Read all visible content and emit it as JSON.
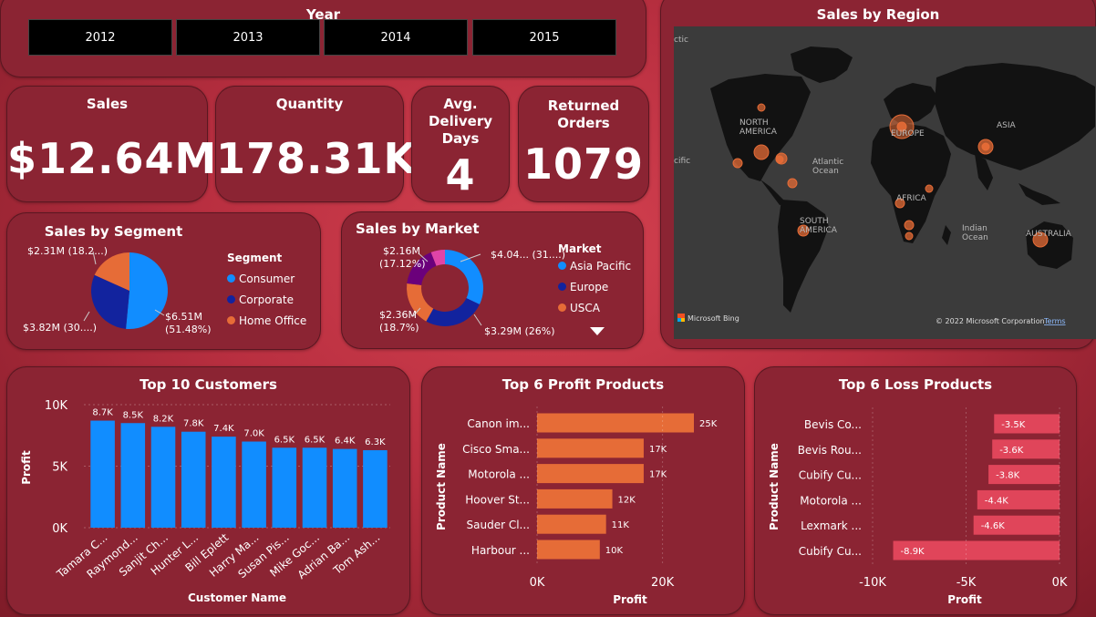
{
  "year_slicer": {
    "title": "Year",
    "years": [
      "2012",
      "2013",
      "2014",
      "2015"
    ]
  },
  "kpis": {
    "sales": {
      "title": "Sales",
      "value": "$12.64M"
    },
    "quantity": {
      "title": "Quantity",
      "value": "178.31K"
    },
    "delivery": {
      "title_lines": [
        "Avg.",
        "Delivery",
        "Days"
      ],
      "value": "4"
    },
    "returned": {
      "title_lines": [
        "Returned",
        "Orders"
      ],
      "value": "1079"
    }
  },
  "segment": {
    "title": "Sales by Segment",
    "legend_title": "Segment",
    "labels": [
      "$6.51M",
      "(51.48%)",
      "$3.82M (30....)",
      "$2.31M (18.2...)"
    ],
    "colors": {
      "consumer": "#118dff",
      "corporate": "#12239e",
      "home_office": "#e66c37"
    },
    "chart_data": {
      "type": "pie",
      "categories": [
        "Consumer",
        "Corporate",
        "Home Office"
      ],
      "values": [
        6.51,
        3.82,
        2.31
      ]
    }
  },
  "market": {
    "title": "Sales by Market",
    "legend_title": "Market",
    "legend_items": [
      "Asia Pacific",
      "Europe",
      "USCA"
    ],
    "labels": [
      "$4.04... (31....)",
      "$3.29M (26%)",
      "$2.36M",
      "(18.7%)",
      "$2.16M",
      "(17.12%)"
    ],
    "colors": [
      "#118dff",
      "#12239e",
      "#e66c37",
      "#6b007b",
      "#e044a7"
    ],
    "chart_data": {
      "type": "pie",
      "values": [
        4.04,
        3.29,
        2.36,
        2.16,
        0.75
      ]
    }
  },
  "region_map": {
    "title": "Sales by Region",
    "continents": [
      "NORTH AMERICA",
      "EUROPE",
      "ASIA",
      "AFRICA",
      "SOUTH AMERICA",
      "AUSTRALIA"
    ],
    "oceans": [
      "Atlantic Ocean",
      "Indian Ocean"
    ],
    "edge_fragments": [
      "ctic",
      "cific"
    ],
    "attribution": "Microsoft Bing",
    "copyright": "© 2022 Microsoft Corporation",
    "terms": "Terms"
  },
  "top_customers": {
    "title": "Top 10 Customers",
    "color": "#118dff",
    "chart_data": {
      "type": "bar",
      "categories": [
        "Tamara C...",
        "Raymond...",
        "Sanjit Ch...",
        "Hunter L...",
        "Bill Eplett",
        "Harry Ma...",
        "Susan Pis...",
        "Mike Goc...",
        "Adrian Ba...",
        "Tom Ash..."
      ],
      "values": [
        8.7,
        8.5,
        8.2,
        7.8,
        7.4,
        7.0,
        6.5,
        6.5,
        6.4,
        6.3
      ],
      "data_labels": [
        "8.7K",
        "8.5K",
        "8.2K",
        "7.8K",
        "7.4K",
        "7.0K",
        "6.5K",
        "6.5K",
        "6.4K",
        "6.3K"
      ],
      "xlabel": "Customer Name",
      "ylabel": "Profit",
      "yticks": [
        "0K",
        "5K",
        "10K"
      ],
      "ylim": [
        0,
        10
      ]
    }
  },
  "profit_products": {
    "title": "Top 6 Profit Products",
    "color": "#e66c37",
    "chart_data": {
      "type": "bar",
      "orientation": "horizontal",
      "categories": [
        "Canon im...",
        "Cisco Sma...",
        "Motorola ...",
        "Hoover St...",
        "Sauder Cl...",
        "Harbour ..."
      ],
      "values": [
        25,
        17,
        17,
        12,
        11,
        10
      ],
      "data_labels": [
        "25K",
        "17K",
        "17K",
        "12K",
        "11K",
        "10K"
      ],
      "xlabel": "Profit",
      "ylabel": "Product Name",
      "xticks": [
        "0K",
        "20K"
      ],
      "xlim": [
        0,
        25
      ]
    }
  },
  "loss_products": {
    "title": "Top 6 Loss Products",
    "color": "#e0455a",
    "chart_data": {
      "type": "bar",
      "orientation": "horizontal",
      "categories": [
        "Bevis Co...",
        "Bevis Rou...",
        "Cubify Cu...",
        "Motorola ...",
        "Lexmark ...",
        "Cubify Cu..."
      ],
      "values": [
        -3.5,
        -3.6,
        -3.8,
        -4.4,
        -4.6,
        -8.9
      ],
      "data_labels": [
        "-3.5K",
        "-3.6K",
        "-3.8K",
        "-4.4K",
        "-4.6K",
        "-8.9K"
      ],
      "xlabel": "Profit",
      "ylabel": "Product Name",
      "xticks": [
        "-10K",
        "-5K",
        "0K"
      ],
      "xlim": [
        -10,
        0
      ]
    }
  }
}
